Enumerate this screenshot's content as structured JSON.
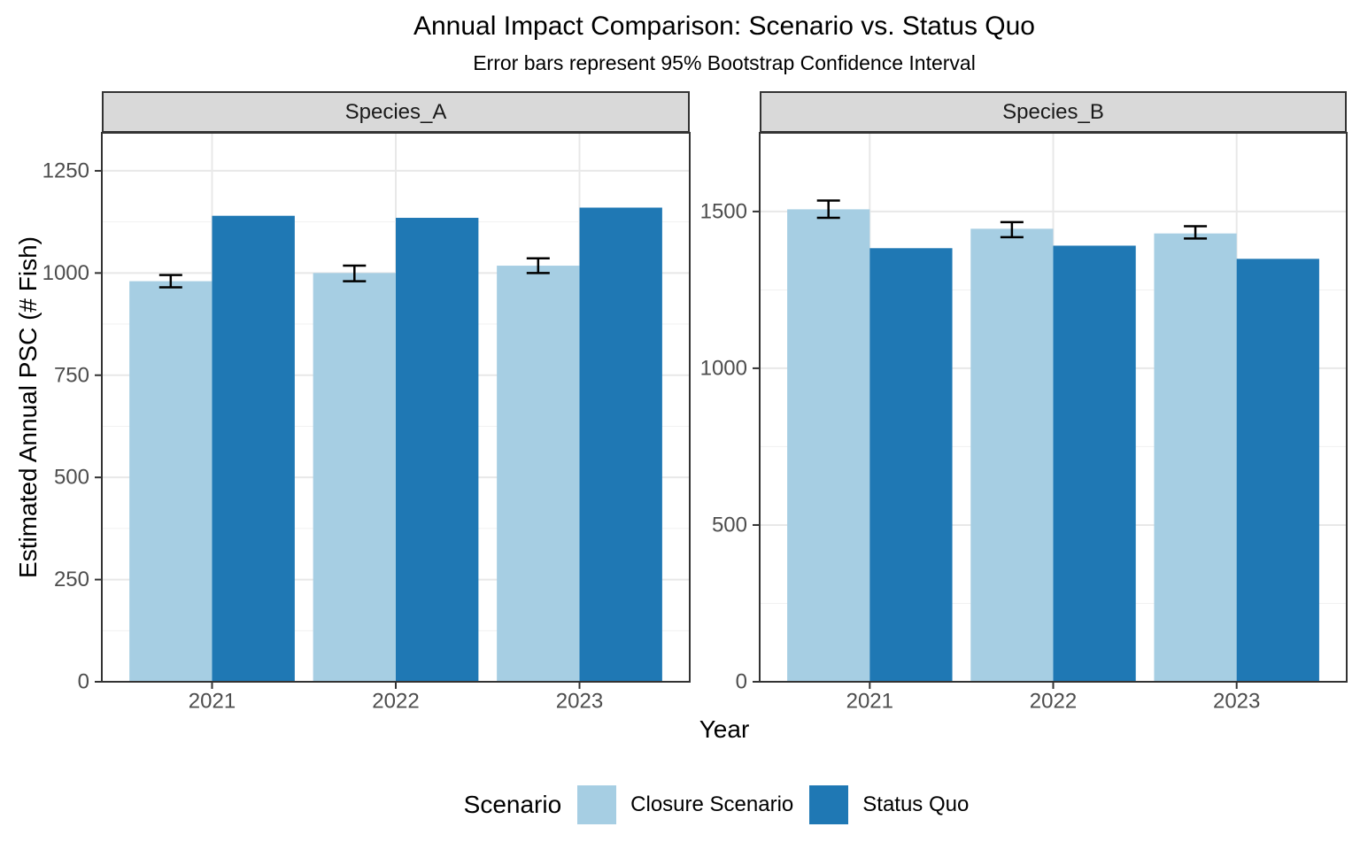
{
  "chart_data": {
    "type": "bar",
    "title": "Annual Impact Comparison: Scenario vs. Status Quo",
    "subtitle": "Error bars represent 95% Bootstrap Confidence Interval",
    "xlabel": "Year",
    "ylabel": "Estimated Annual PSC (# Fish)",
    "legend_title": "Scenario",
    "legend_position": "bottom",
    "grid": true,
    "facet_layout": "two panels side by side, free y scales",
    "categories": [
      "2021",
      "2022",
      "2023"
    ],
    "series_names": [
      "Closure Scenario",
      "Status Quo"
    ],
    "series_colors": [
      "#A6CEE3",
      "#1F78B4"
    ],
    "error_bar_note": "error bars drawn on Closure Scenario bars only",
    "panels": [
      {
        "facet": "Species_A",
        "ylim": [
          0,
          1343
        ],
        "yticks": [
          0,
          250,
          500,
          750,
          1000,
          1250
        ],
        "series": [
          {
            "name": "Closure Scenario",
            "values": [
              980,
              1000,
              1018
            ],
            "ci_low": [
              965,
              980,
              1000
            ],
            "ci_high": [
              995,
              1018,
              1036
            ]
          },
          {
            "name": "Status Quo",
            "values": [
              1140,
              1135,
              1160
            ]
          }
        ]
      },
      {
        "facet": "Species_B",
        "ylim": [
          0,
          1751
        ],
        "yticks": [
          0,
          500,
          1000,
          1500
        ],
        "series": [
          {
            "name": "Closure Scenario",
            "values": [
              1507,
              1445,
              1430
            ],
            "ci_low": [
              1480,
              1418,
              1414
            ],
            "ci_high": [
              1535,
              1466,
              1453
            ]
          },
          {
            "name": "Status Quo",
            "values": [
              1383,
              1391,
              1349
            ]
          }
        ]
      }
    ]
  },
  "style": {
    "strip_bg": "#D9D9D9",
    "panel_border": "#333333",
    "grid_major": "#E8E8E8",
    "grid_minor": "#F1F1F1",
    "axis_text_color": "#4D4D4D",
    "error_bar_color": "#000000"
  }
}
